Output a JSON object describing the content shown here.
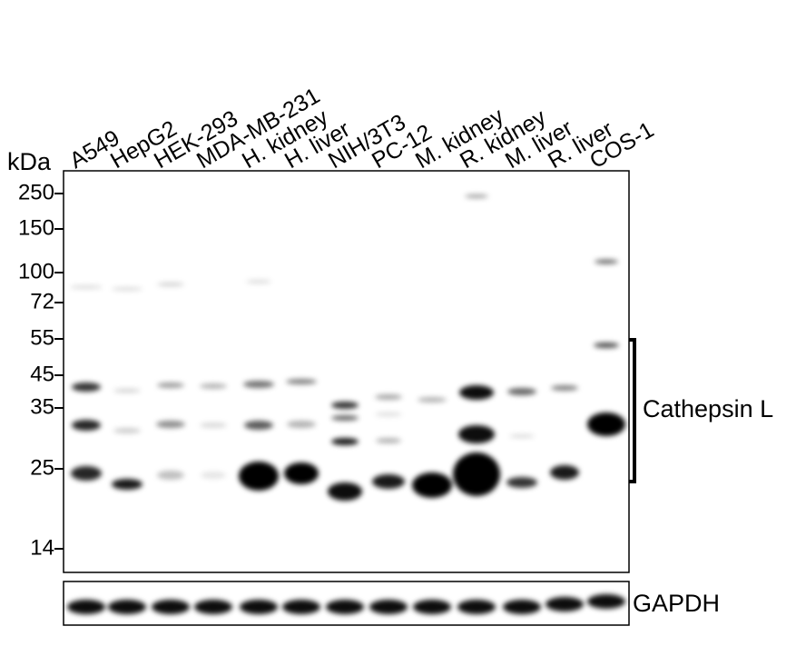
{
  "lanes": [
    "A549",
    "HepG2",
    "HEK-293",
    "MDA-MB-231",
    "H. kidney",
    "H. liver",
    "NIH/3T3",
    "PC-12",
    "M. kidney",
    "R. kidney",
    "M. liver",
    "R. liver",
    "COS-1"
  ],
  "marker_unit": "kDa",
  "markers": [
    "250",
    "150",
    "100",
    "72",
    "55",
    "45",
    "35",
    "25",
    "14"
  ],
  "target_label": "Cathepsin L",
  "loading_control": "GAPDH"
}
